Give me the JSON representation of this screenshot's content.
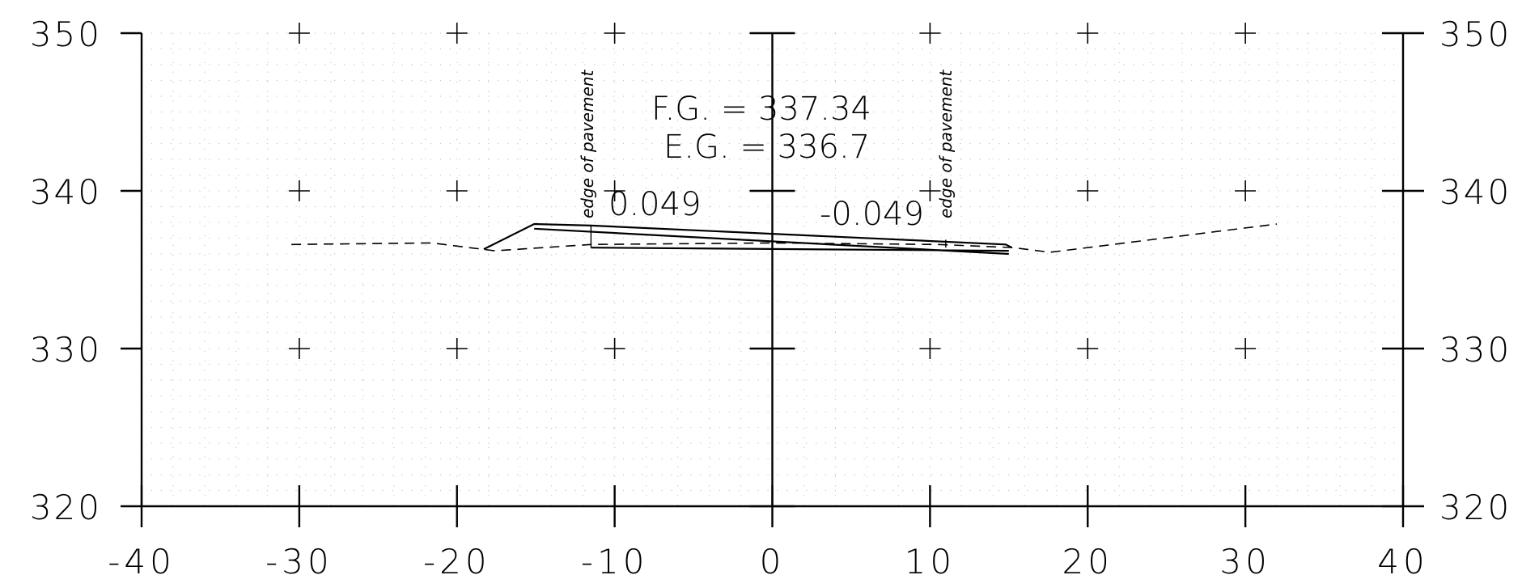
{
  "chart_data": {
    "type": "line",
    "title": "",
    "xlabel": "",
    "ylabel": "",
    "xlim": [
      -40,
      40
    ],
    "ylim": [
      320,
      350
    ],
    "x_ticks": [
      "-40",
      "-30",
      "-20",
      "-10",
      "0",
      "10",
      "20",
      "30",
      "40"
    ],
    "y_ticks": [
      "350",
      "340",
      "330",
      "320"
    ],
    "grid": "dotted",
    "series": [
      {
        "style": "dashed",
        "points": [
          [
            -30.5,
            336.6
          ],
          [
            -21.6,
            336.7
          ],
          [
            -17.6,
            336.2
          ],
          [
            -11.5,
            336.6
          ],
          [
            0,
            336.7
          ],
          [
            10.5,
            336.6
          ],
          [
            15.3,
            336.4
          ],
          [
            17.6,
            336.1
          ],
          [
            32,
            337.9
          ]
        ]
      },
      {
        "style": "solid",
        "points": [
          [
            -18.3,
            336.3
          ],
          [
            -15.1,
            337.9
          ],
          [
            -11.5,
            337.8
          ],
          [
            14.8,
            336.6
          ],
          [
            15.2,
            336.4
          ]
        ]
      },
      {
        "style": "solid",
        "points": [
          [
            -15.1,
            337.6
          ],
          [
            15.0,
            336.0
          ]
        ]
      },
      {
        "style": "solid",
        "points": [
          [
            -11.5,
            336.4
          ],
          [
            15.0,
            336.2
          ]
        ]
      }
    ],
    "annotations": {
      "fg": "F.G. = 337.34",
      "eg": "E.G. = 336.7",
      "left_slope": "0.049",
      "right_slope": "-0.049",
      "edge_left": "edge of pavement",
      "edge_right": "edge of pavement"
    }
  }
}
